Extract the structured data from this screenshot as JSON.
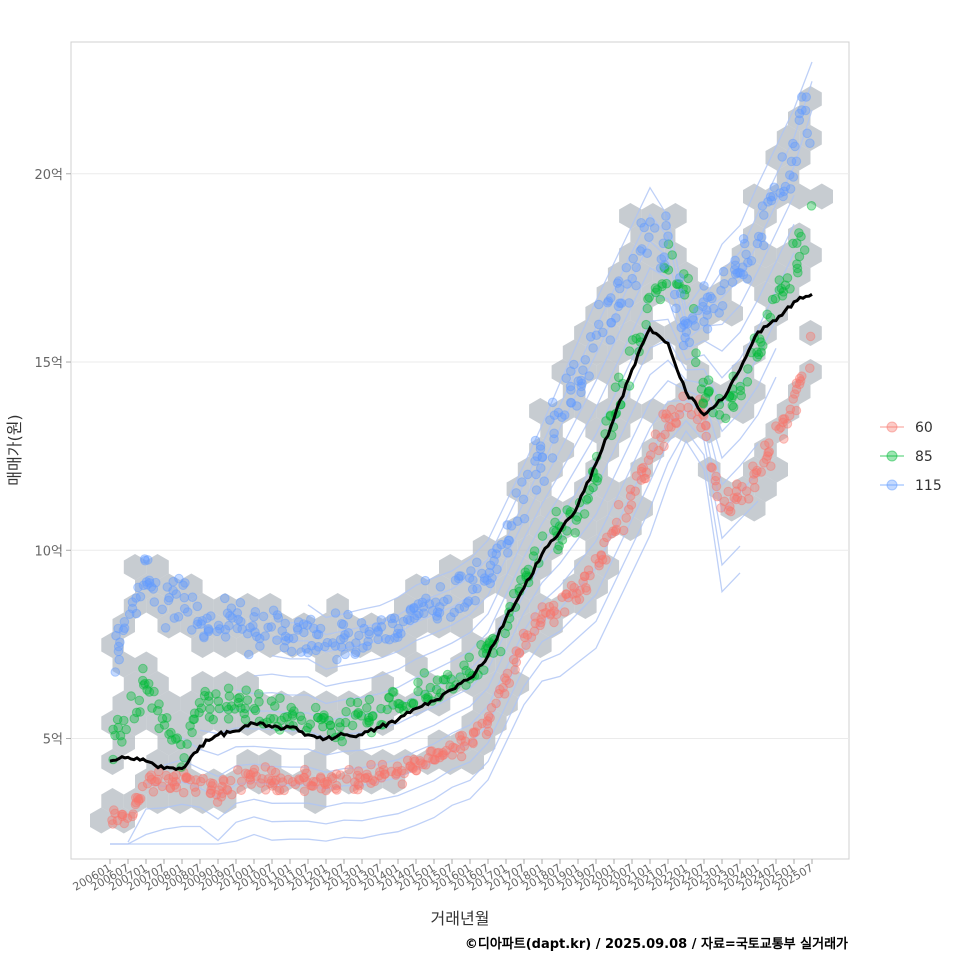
{
  "chart_data": {
    "type": "scatter",
    "title": "",
    "xlabel": "거래년월",
    "ylabel": "매매가(원)",
    "caption": "©디아파트(dapt.kr) / 2025.09.08 / 자료=국토교통부 실거래가",
    "ylim": [
      1.8,
      23.5
    ],
    "y_unit": "억",
    "y_ticks": [
      {
        "value": 5,
        "label": "5억"
      },
      {
        "value": 10,
        "label": "10억"
      },
      {
        "value": 15,
        "label": "15억"
      },
      {
        "value": 20,
        "label": "20억"
      }
    ],
    "x_ticks": [
      "200601",
      "200607",
      "200701",
      "200707",
      "200801",
      "200807",
      "200901",
      "200907",
      "201001",
      "201007",
      "201101",
      "201107",
      "201201",
      "201207",
      "201301",
      "201307",
      "201401",
      "201407",
      "201501",
      "201507",
      "201601",
      "201607",
      "201701",
      "201707",
      "201801",
      "201807",
      "201901",
      "201907",
      "202001",
      "202007",
      "202101",
      "202107",
      "202201",
      "202207",
      "202301",
      "202307",
      "202401",
      "202407",
      "202501",
      "202507"
    ],
    "legend": {
      "position": "right",
      "title": "",
      "entries": [
        {
          "name": "60",
          "color": "#F8766D"
        },
        {
          "name": "85",
          "color": "#00BA38"
        },
        {
          "name": "115",
          "color": "#619CFF"
        }
      ]
    },
    "series": [
      {
        "name": "60",
        "color": "#F8766D",
        "x": [
          0,
          1,
          2,
          3,
          4,
          5,
          6,
          7,
          8,
          9,
          10,
          11,
          12,
          13,
          14,
          15,
          16,
          17,
          18,
          19,
          20,
          21,
          22,
          23,
          24,
          25,
          26,
          27,
          28,
          29,
          30,
          31,
          32,
          33,
          34,
          35,
          36,
          37,
          38,
          39
        ],
        "values": [
          2.8,
          2.9,
          3.8,
          3.8,
          3.9,
          3.8,
          3.5,
          3.9,
          4.0,
          3.9,
          3.9,
          3.9,
          3.8,
          3.9,
          3.9,
          4.0,
          4.1,
          4.3,
          4.5,
          4.8,
          5.0,
          5.5,
          6.5,
          7.5,
          8.2,
          8.5,
          9.0,
          9.5,
          10.5,
          11.5,
          12.5,
          13.5,
          14.0,
          13.5,
          11.0,
          11.5,
          12.0,
          13.0,
          14.0,
          15.5
        ]
      },
      {
        "name": "85",
        "color": "#00BA38",
        "x": [
          0,
          1,
          2,
          3,
          4,
          5,
          6,
          7,
          8,
          9,
          10,
          11,
          12,
          13,
          14,
          15,
          16,
          17,
          18,
          19,
          20,
          21,
          22,
          23,
          24,
          25,
          26,
          27,
          28,
          29,
          30,
          31,
          32,
          33,
          34,
          35,
          36,
          37,
          38,
          39
        ],
        "values": [
          4.8,
          5.5,
          6.5,
          5.5,
          4.5,
          6.0,
          6.0,
          5.8,
          5.7,
          5.6,
          5.6,
          5.5,
          5.5,
          5.4,
          5.6,
          5.7,
          5.8,
          6.0,
          6.3,
          6.6,
          6.8,
          7.2,
          8.0,
          9.0,
          10.0,
          10.5,
          11.0,
          12.0,
          13.5,
          15.0,
          16.5,
          17.5,
          17.0,
          14.0,
          13.5,
          14.5,
          15.5,
          16.5,
          17.5,
          19.0
        ]
      },
      {
        "name": "115",
        "color": "#619CFF",
        "x": [
          0,
          1,
          2,
          3,
          4,
          5,
          6,
          7,
          8,
          9,
          10,
          11,
          12,
          13,
          14,
          15,
          16,
          17,
          18,
          19,
          20,
          21,
          22,
          23,
          24,
          25,
          26,
          27,
          28,
          29,
          30,
          31,
          32,
          33,
          34,
          35,
          36,
          37,
          38,
          39
        ],
        "values": [
          7.0,
          8.0,
          9.5,
          8.5,
          8.8,
          8.0,
          8.2,
          8.0,
          7.8,
          7.9,
          7.8,
          7.8,
          7.5,
          7.6,
          7.7,
          7.8,
          8.0,
          8.3,
          8.5,
          8.7,
          9.0,
          9.5,
          10.5,
          11.5,
          12.5,
          13.5,
          14.5,
          15.5,
          16.5,
          17.5,
          18.5,
          18.0,
          16.0,
          16.5,
          17.0,
          17.5,
          18.5,
          19.5,
          20.5,
          22.0
        ]
      },
      {
        "name": "average",
        "color": "#000000",
        "x": [
          0,
          1,
          2,
          3,
          4,
          5,
          6,
          7,
          8,
          9,
          10,
          11,
          12,
          13,
          14,
          15,
          16,
          17,
          18,
          19,
          20,
          21,
          22,
          23,
          24,
          25,
          26,
          27,
          28,
          29,
          30,
          31,
          32,
          33,
          34,
          35,
          36,
          37,
          38,
          39
        ],
        "values": [
          4.4,
          4.5,
          4.4,
          4.2,
          4.2,
          4.8,
          5.1,
          5.2,
          5.4,
          5.3,
          5.3,
          5.1,
          5.0,
          5.1,
          5.1,
          5.3,
          5.5,
          5.8,
          6.0,
          6.3,
          6.6,
          7.2,
          8.2,
          9.0,
          9.9,
          10.5,
          11.2,
          12.3,
          13.5,
          14.8,
          15.9,
          15.5,
          14.2,
          13.6,
          14.0,
          14.8,
          15.8,
          16.1,
          16.6,
          16.8
        ]
      }
    ]
  }
}
